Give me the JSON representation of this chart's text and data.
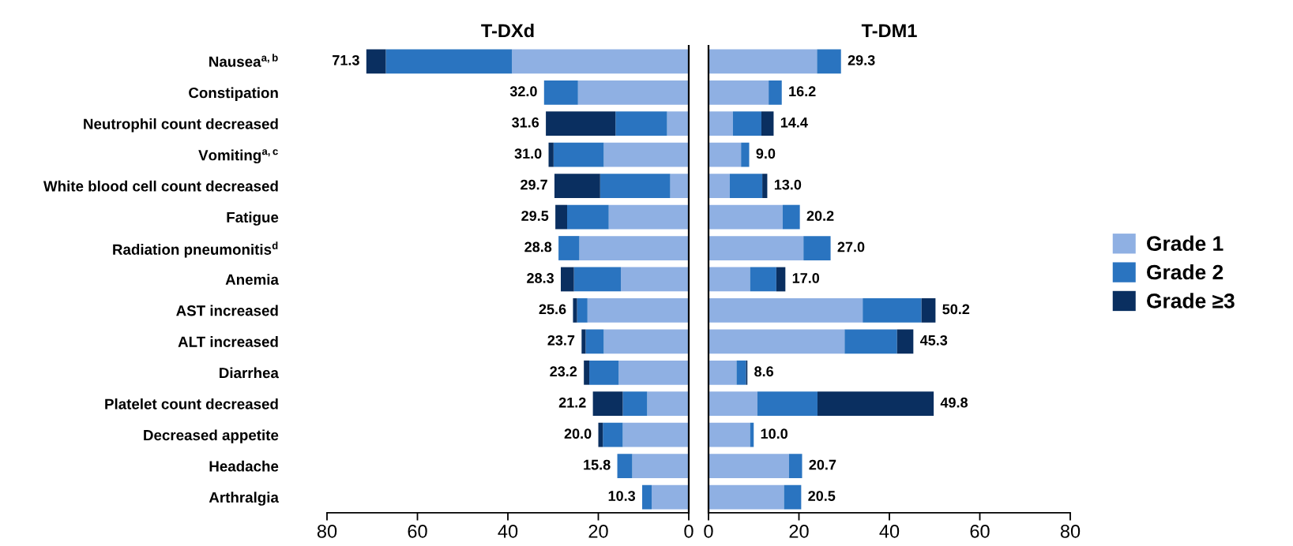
{
  "chart_data": [
    {
      "type": "bar",
      "orientation": "horizontal",
      "stacked": true,
      "title": "T-DXd",
      "categories": [
        "Nausea$^{a,b}$",
        "Constipation",
        "Neutrophil count decreased",
        "Vomiting$^{a,c}$",
        "White blood cell count decreased",
        "Fatigue",
        "Radiation pneumonitis$^{d}$",
        "Anemia",
        "AST increased",
        "ALT increased",
        "Diarrhea",
        "Platelet count decreased",
        "Decreased appetite",
        "Headache",
        "Arthralgia"
      ],
      "series": [
        {
          "name": "Grade 1",
          "color": "#8fb0e3",
          "values": [
            39.1,
            24.5,
            4.8,
            18.8,
            4.1,
            17.7,
            24.2,
            15.0,
            22.4,
            18.8,
            15.5,
            9.2,
            14.6,
            12.5,
            8.2
          ]
        },
        {
          "name": "Grade 2",
          "color": "#2a74c0",
          "values": [
            27.9,
            7.5,
            11.4,
            11.1,
            15.5,
            9.2,
            4.6,
            10.4,
            2.3,
            4.0,
            6.5,
            5.4,
            4.4,
            3.3,
            2.1
          ]
        },
        {
          "name": "Grade ≥3",
          "color": "#0a2f60",
          "values": [
            4.3,
            0,
            15.4,
            1.1,
            10.1,
            2.6,
            0,
            2.9,
            0.9,
            0.9,
            1.2,
            6.6,
            1.0,
            0,
            0
          ]
        }
      ],
      "totals": [
        "71.3",
        "32.0",
        "31.6",
        "31.0",
        "29.7",
        "29.5",
        "28.8",
        "28.3",
        "25.6",
        "23.7",
        "23.2",
        "21.2",
        "20.0",
        "15.8",
        "10.3"
      ],
      "xlim": [
        80,
        0
      ],
      "xticks": [
        80,
        60,
        40,
        20,
        0
      ],
      "legend": "right"
    },
    {
      "type": "bar",
      "orientation": "horizontal",
      "stacked": true,
      "title": "T-DM1",
      "categories": [
        null,
        null,
        null,
        null,
        null,
        null,
        null,
        null,
        null,
        null,
        null,
        null,
        null,
        null,
        null
      ],
      "series": [
        {
          "color": "#8fb0e3",
          "values": [
            24.0,
            13.3,
            5.4,
            7.2,
            4.7,
            16.4,
            21.0,
            9.2,
            34.1,
            30.1,
            6.2,
            10.8,
            9.2,
            17.8,
            16.7
          ]
        },
        {
          "color": "#2a74c0",
          "values": [
            5.3,
            2.9,
            6.3,
            1.8,
            7.2,
            3.8,
            6.0,
            5.8,
            13.0,
            11.6,
            2.1,
            13.3,
            0.8,
            2.9,
            3.8
          ]
        },
        {
          "color": "#0a2f60",
          "values": [
            0,
            0,
            2.7,
            0,
            1.1,
            0,
            0,
            2.0,
            3.1,
            3.6,
            0.3,
            25.7,
            0,
            0,
            0
          ]
        }
      ],
      "totals": [
        "29.3",
        "16.2",
        "14.4",
        "9.0",
        "13.0",
        "20.2",
        "27.0",
        "17.0",
        "50.2",
        "45.3",
        "8.6",
        "49.8",
        "10.0",
        "20.7",
        "20.5"
      ],
      "xlim": [
        0,
        80
      ],
      "xticks": [
        0,
        20,
        40,
        60,
        80
      ],
      "tick_labels": "x"
    }
  ]
}
